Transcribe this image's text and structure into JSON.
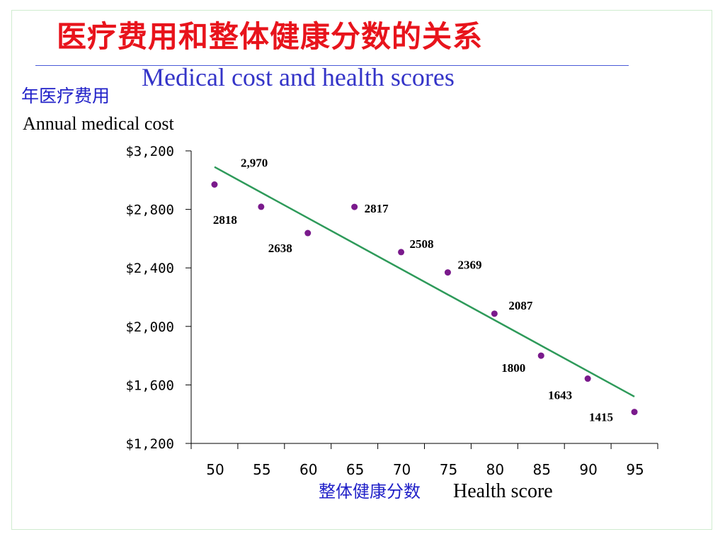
{
  "slide": {
    "title_cn": "医疗费用和整体健康分数的关系",
    "title_en": "Medical cost and health scores"
  },
  "axis_text": {
    "ylabel_cn": "年医疗费用",
    "ylabel_en": "Annual medical cost",
    "xlabel_cn": "整体健康分数",
    "xlabel_en": "Health score"
  },
  "colors": {
    "title_cn": "#e8141c",
    "title_en": "#3434c8",
    "point": "#7a1a8c",
    "trendline": "#2e9a5a"
  },
  "chart_data": {
    "type": "scatter",
    "title": "Medical cost and health scores",
    "xlabel": "Health score",
    "ylabel": "Annual medical cost",
    "xlim": [
      47.5,
      97.5
    ],
    "ylim": [
      1200,
      3200
    ],
    "x_ticks": [
      50,
      55,
      60,
      65,
      70,
      75,
      80,
      85,
      90,
      95
    ],
    "x_tick_labels": [
      "50",
      "55",
      "60",
      "65",
      "70",
      "75",
      "80",
      "85",
      "90",
      "95"
    ],
    "y_ticks": [
      1200,
      1600,
      2000,
      2400,
      2800,
      3200
    ],
    "y_tick_labels": [
      "$1,200",
      "$1,600",
      "$2,000",
      "$2,400",
      "$2,800",
      "$3,200"
    ],
    "points": [
      {
        "x": 50,
        "y": 2970,
        "label": "2,970"
      },
      {
        "x": 55,
        "y": 2818,
        "label": "2818"
      },
      {
        "x": 60,
        "y": 2638,
        "label": "2638"
      },
      {
        "x": 65,
        "y": 2817,
        "label": "2817"
      },
      {
        "x": 70,
        "y": 2508,
        "label": "2508"
      },
      {
        "x": 75,
        "y": 2369,
        "label": "2369"
      },
      {
        "x": 80,
        "y": 2087,
        "label": "2087"
      },
      {
        "x": 85,
        "y": 1800,
        "label": "1800"
      },
      {
        "x": 90,
        "y": 1643,
        "label": "1643"
      },
      {
        "x": 95,
        "y": 1415,
        "label": "1415"
      }
    ],
    "trendline": {
      "x": [
        50,
        95
      ],
      "y": [
        3090,
        1520
      ]
    },
    "grid": false,
    "legend": "none"
  }
}
